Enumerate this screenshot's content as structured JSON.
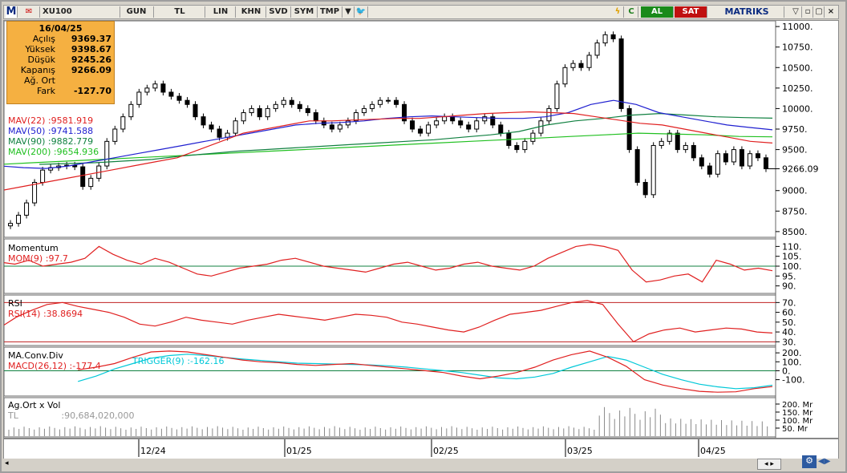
{
  "toolbar": {
    "logo": "M",
    "symbol": "XU100",
    "buttons": [
      "GUN",
      "TL",
      "LIN",
      "KHN",
      "SVD",
      "SYM",
      "TMP"
    ],
    "al": "AL",
    "sat": "SAT",
    "brand": "MATRIKS",
    "c_label": "C"
  },
  "info": {
    "date": "16/04/25",
    "rows": [
      {
        "label": "Açılış",
        "value": "9369.37"
      },
      {
        "label": "Yüksek",
        "value": "9398.67"
      },
      {
        "label": "Düşük",
        "value": "9245.26"
      },
      {
        "label": "Kapanış",
        "value": "9266.09"
      },
      {
        "label": "Ağ. Ort",
        "value": ""
      },
      {
        "label": "Fark",
        "value": "-127.70"
      }
    ]
  },
  "price_legend": [
    {
      "label": "MAV(22)",
      "value": ":9581.919",
      "color": "#e02020"
    },
    {
      "label": "MAV(50)",
      "value": ":9741.588",
      "color": "#2020d0"
    },
    {
      "label": "MAV(90)",
      "value": ":9882.779",
      "color": "#108040"
    },
    {
      "label": "MAV(200)",
      "value": ":9654.936",
      "color": "#20c020"
    }
  ],
  "panels": {
    "momentum": {
      "title": "Momentum",
      "label": "MOM(9)",
      "value": ":97.7"
    },
    "rsi": {
      "title": "RSI",
      "label": "RSI(14)",
      "value": ":38.8694"
    },
    "macd": {
      "title": "MA.Conv.Div",
      "label": "MACD(26,12)",
      "value": ":-177.4",
      "trigger_label": "TRIGGER(9)",
      "trigger_value": ":-162.16"
    },
    "vol": {
      "title": "Ag.Ort x Vol",
      "label": "TL",
      "value": ":90,684,020,000"
    }
  },
  "chart_data": {
    "type": "line",
    "x_labels": [
      "12/24",
      "01/25",
      "02/25",
      "03/25",
      "04/25"
    ],
    "price": {
      "y_ticks": [
        "11000.",
        "10750.",
        "10500.",
        "10250.",
        "10000.",
        "9750.",
        "9500.",
        "9266.09",
        "9000.",
        "8750.",
        "8500."
      ],
      "last": "9266.09",
      "close": [
        8600,
        8700,
        8850,
        9100,
        9250,
        9280,
        9300,
        9310,
        9290,
        9050,
        9150,
        9300,
        9600,
        9750,
        9900,
        10050,
        10200,
        10250,
        10300,
        10200,
        10150,
        10100,
        10050,
        9900,
        9800,
        9750,
        9650,
        9700,
        9850,
        9950,
        10000,
        9900,
        10000,
        10050,
        10100,
        10050,
        10000,
        9950,
        9850,
        9800,
        9750,
        9800,
        9850,
        9950,
        10000,
        10050,
        10100,
        10100,
        10050,
        9850,
        9750,
        9700,
        9800,
        9850,
        9900,
        9850,
        9800,
        9750,
        9850,
        9900,
        9800,
        9700,
        9550,
        9500,
        9600,
        9700,
        9850,
        10000,
        10300,
        10500,
        10550,
        10500,
        10650,
        10800,
        10900,
        10850,
        10000,
        9500,
        9100,
        8950,
        9550,
        9600,
        9700,
        9500,
        9550,
        9400,
        9300,
        9200,
        9450,
        9350,
        9500,
        9300,
        9450,
        9400,
        9266
      ],
      "mav22": [
        9000,
        9050,
        9100,
        9150,
        9200,
        9250,
        9300,
        9350,
        9400,
        9500,
        9600,
        9700,
        9750,
        9800,
        9850,
        9850,
        9860,
        9870,
        9880,
        9880,
        9900,
        9920,
        9940,
        9950,
        9960,
        9950,
        9940,
        9900,
        9860,
        9820,
        9800,
        9750,
        9700,
        9650,
        9600,
        9580
      ],
      "mav50": [
        9300,
        9280,
        9270,
        9300,
        9350,
        9400,
        9450,
        9500,
        9550,
        9600,
        9650,
        9700,
        9750,
        9800,
        9820,
        9830,
        9850,
        9880,
        9900,
        9910,
        9900,
        9890,
        9880,
        9880,
        9900,
        9950,
        10050,
        10100,
        10050,
        9950,
        9900,
        9850,
        9800,
        9770,
        9741
      ],
      "mav90": [
        9320,
        9330,
        9340,
        9360,
        9380,
        9420,
        9450,
        9480,
        9500,
        9520,
        9540,
        9560,
        9580,
        9600,
        9620,
        9650,
        9680,
        9720,
        9800,
        9850,
        9880,
        9920,
        9940,
        9920,
        9900,
        9890,
        9883
      ],
      "mav200": [
        9320,
        9340,
        9360,
        9380,
        9400,
        9420,
        9440,
        9460,
        9480,
        9500,
        9520,
        9540,
        9560,
        9580,
        9600,
        9620,
        9640,
        9660,
        9680,
        9700,
        9690,
        9680,
        9660,
        9655
      ]
    },
    "momentum": {
      "y_ticks": [
        "110.",
        "105.",
        "100.",
        "95.",
        "90."
      ],
      "values": [
        102,
        101,
        103,
        100,
        101,
        102,
        104,
        110,
        106,
        103,
        101,
        104,
        102,
        99,
        96,
        95,
        97,
        99,
        100,
        101,
        103,
        104,
        102,
        100,
        99,
        98,
        97,
        99,
        101,
        102,
        100,
        98,
        99,
        101,
        102,
        100,
        99,
        98,
        100,
        104,
        107,
        110,
        111,
        110,
        108,
        98,
        92,
        93,
        95,
        96,
        92,
        103,
        101,
        98,
        99,
        97.7
      ]
    },
    "rsi": {
      "y_ticks": [
        "70.",
        "60.",
        "50.",
        "40.",
        "30."
      ],
      "values": [
        45,
        55,
        62,
        68,
        70,
        66,
        63,
        60,
        55,
        48,
        46,
        50,
        55,
        52,
        50,
        48,
        52,
        55,
        58,
        56,
        54,
        52,
        55,
        58,
        57,
        55,
        50,
        48,
        45,
        42,
        40,
        45,
        52,
        58,
        60,
        62,
        66,
        70,
        72,
        68,
        48,
        30,
        38,
        42,
        44,
        40,
        42,
        44,
        43,
        40,
        38.9
      ]
    },
    "macd": {
      "y_ticks": [
        "200.",
        "100.",
        "0.",
        "-100."
      ],
      "macd": [
        10,
        40,
        80,
        150,
        210,
        220,
        210,
        180,
        150,
        120,
        100,
        90,
        70,
        60,
        70,
        80,
        60,
        40,
        20,
        0,
        -20,
        -60,
        -90,
        -60,
        -20,
        40,
        120,
        180,
        220,
        150,
        50,
        -100,
        -160,
        -200,
        -230,
        -240,
        -235,
        -200,
        -177
      ],
      "trigger": [
        -120,
        -60,
        20,
        80,
        140,
        170,
        185,
        170,
        150,
        130,
        115,
        100,
        85,
        80,
        75,
        70,
        65,
        55,
        40,
        20,
        0,
        -20,
        -50,
        -80,
        -90,
        -70,
        -30,
        40,
        100,
        160,
        120,
        40,
        -40,
        -100,
        -150,
        -180,
        -200,
        -190,
        -162
      ]
    },
    "vol": {
      "y_ticks": [
        "200. Mr",
        "150. Mr",
        "100. Mr",
        "50. Mr"
      ]
    }
  }
}
